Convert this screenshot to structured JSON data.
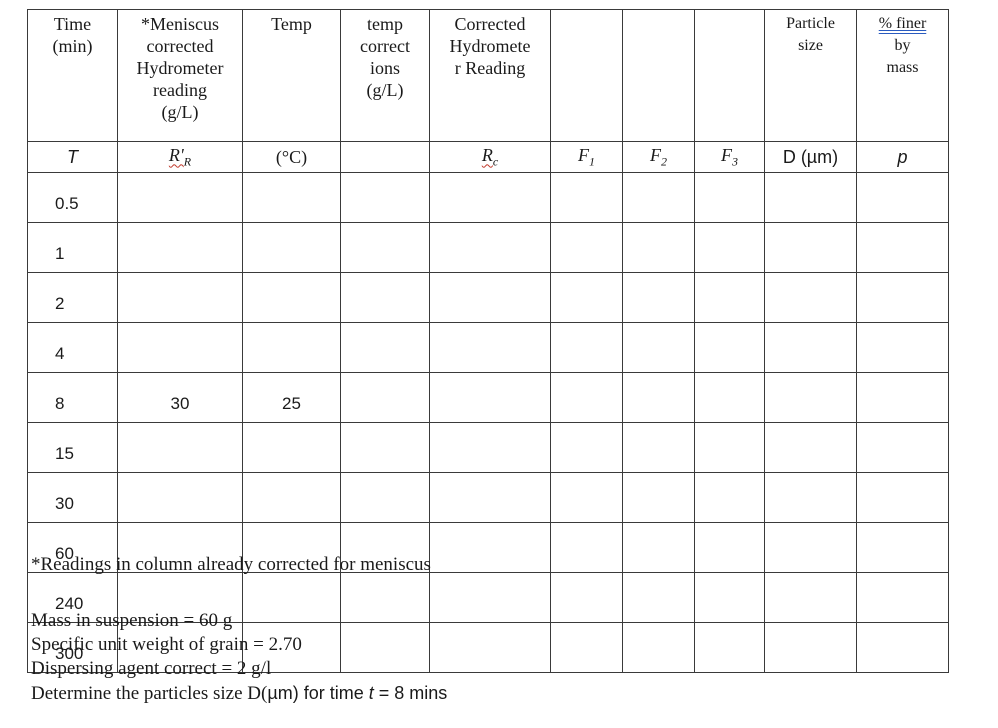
{
  "table": {
    "columns": [
      {
        "key": "time",
        "title_lines": [
          "Time",
          "(min)"
        ],
        "symbol": "T",
        "symbol_style": "sans-italic"
      },
      {
        "key": "meniscus",
        "title_lines": [
          "*Meniscus",
          "corrected",
          "Hydrometer",
          "reading",
          "(g/L)"
        ],
        "symbol": "R'R",
        "symbol_style": "serif-italic"
      },
      {
        "key": "temp",
        "title_lines": [
          "Temp"
        ],
        "symbol": "(°C)",
        "symbol_style": "serif"
      },
      {
        "key": "tempcorr",
        "title_lines": [
          "temp",
          "correct",
          "ions",
          "(g/L)"
        ],
        "symbol": "",
        "symbol_style": "serif"
      },
      {
        "key": "corrected",
        "title_lines": [
          "Corrected",
          "Hydromete",
          "r Reading"
        ],
        "symbol": "Rc",
        "symbol_style": "serif-italic"
      },
      {
        "key": "f1",
        "title_lines": [],
        "symbol": "F1",
        "symbol_style": "serif-italic"
      },
      {
        "key": "f2",
        "title_lines": [],
        "symbol": "F2",
        "symbol_style": "serif-italic"
      },
      {
        "key": "f3",
        "title_lines": [],
        "symbol": "F3",
        "symbol_style": "serif-italic"
      },
      {
        "key": "particle",
        "title_lines": [
          "Particle",
          "size"
        ],
        "symbol": "D (µm)",
        "symbol_style": "sans"
      },
      {
        "key": "finer",
        "title_lines": [
          "% finer",
          "by",
          "mass"
        ],
        "symbol": "p",
        "symbol_style": "sans-italic"
      }
    ],
    "rows": [
      {
        "time": "0.5",
        "meniscus": "",
        "temp": ""
      },
      {
        "time": "1",
        "meniscus": "",
        "temp": ""
      },
      {
        "time": "2",
        "meniscus": "",
        "temp": ""
      },
      {
        "time": "4",
        "meniscus": "",
        "temp": ""
      },
      {
        "time": "8",
        "meniscus": "30",
        "temp": "25"
      },
      {
        "time": "15",
        "meniscus": "",
        "temp": ""
      },
      {
        "time": "30",
        "meniscus": "",
        "temp": ""
      },
      {
        "time": "60",
        "meniscus": "",
        "temp": ""
      },
      {
        "time": "240",
        "meniscus": "",
        "temp": ""
      },
      {
        "time": "300",
        "meniscus": "",
        "temp": ""
      }
    ]
  },
  "footnote": "*Readings in column already corrected for meniscus",
  "given": {
    "mass": "Mass in suspension = 60 g",
    "specific_weight": "Specific unit weight of grain = 2.70",
    "dispersing": "Dispersing agent correct = 2 g/l",
    "task_serif": "Determine the particles size D(",
    "task_sans": "µm) for time ",
    "task_var": "t",
    "task_end": " = 8 mins"
  }
}
